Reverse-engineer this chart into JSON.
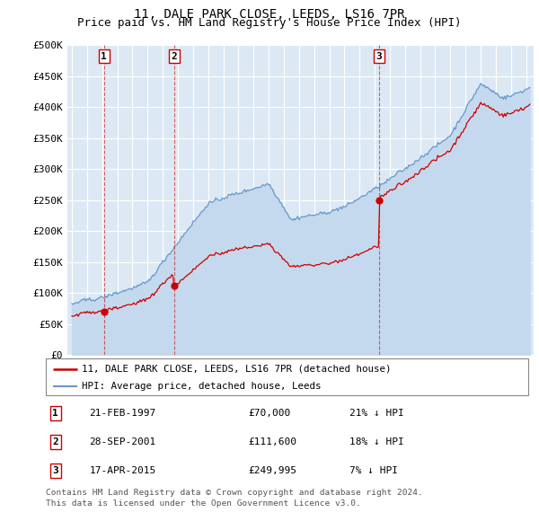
{
  "title": "11, DALE PARK CLOSE, LEEDS, LS16 7PR",
  "subtitle": "Price paid vs. HM Land Registry's House Price Index (HPI)",
  "title_fontsize": 10,
  "subtitle_fontsize": 9,
  "ylim": [
    0,
    500000
  ],
  "xlim_start": 1994.7,
  "xlim_end": 2025.5,
  "plot_bg_color": "#dce9f5",
  "grid_color": "#ffffff",
  "transactions": [
    {
      "num": 1,
      "date_label": "21-FEB-1997",
      "year": 1997.12,
      "price": 70000,
      "pct_label": "21% ↓ HPI"
    },
    {
      "num": 2,
      "date_label": "28-SEP-2001",
      "year": 2001.75,
      "price": 111600,
      "pct_label": "18% ↓ HPI"
    },
    {
      "num": 3,
      "date_label": "17-APR-2015",
      "year": 2015.29,
      "price": 249995,
      "pct_label": "7% ↓ HPI"
    }
  ],
  "legend_line1": "11, DALE PARK CLOSE, LEEDS, LS16 7PR (detached house)",
  "legend_line2": "HPI: Average price, detached house, Leeds",
  "footer1": "Contains HM Land Registry data © Crown copyright and database right 2024.",
  "footer2": "This data is licensed under the Open Government Licence v3.0.",
  "red_color": "#cc0000",
  "blue_color": "#6699cc",
  "blue_fill_color": "#c5d9ee",
  "ytick_labels": [
    "£0",
    "£50K",
    "£100K",
    "£150K",
    "£200K",
    "£250K",
    "£300K",
    "£350K",
    "£400K",
    "£450K",
    "£500K"
  ],
  "ytick_values": [
    0,
    50000,
    100000,
    150000,
    200000,
    250000,
    300000,
    350000,
    400000,
    450000,
    500000
  ]
}
